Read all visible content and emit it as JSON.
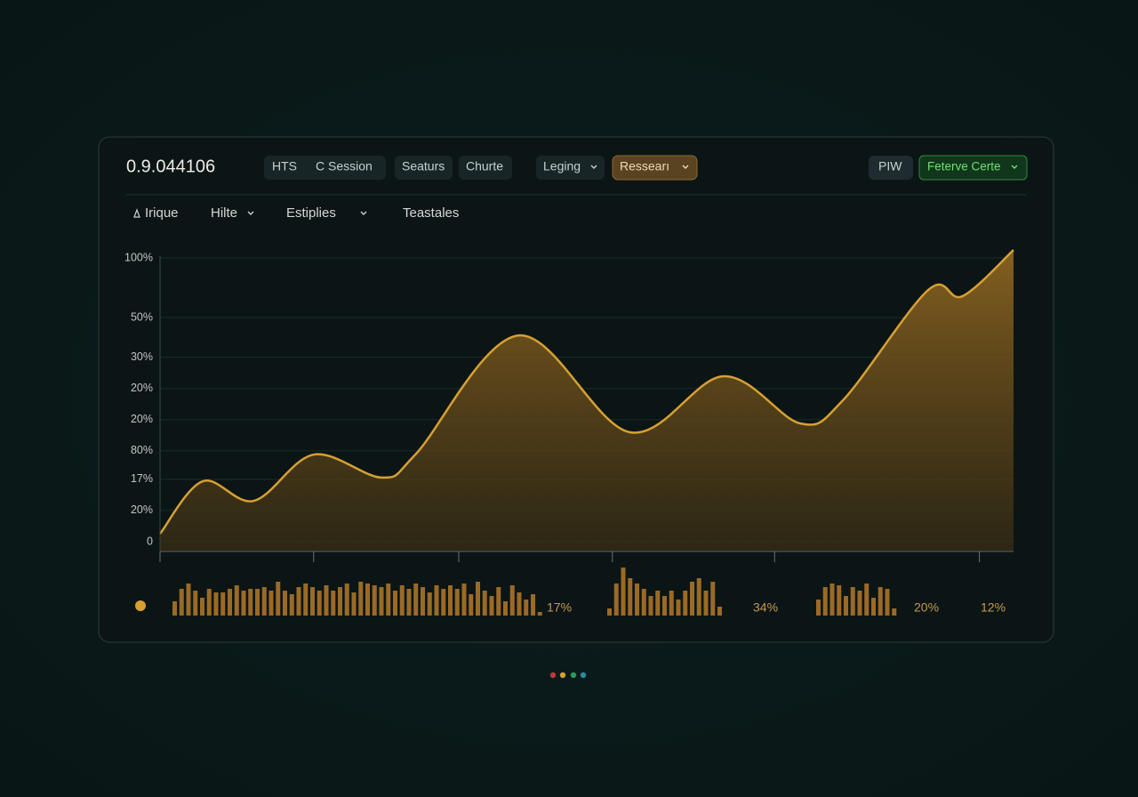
{
  "header": {
    "title": "0.9.044106",
    "buttons": [
      "HTS",
      "C Session",
      "Seaturs",
      "Churte",
      "Leging",
      "Ressearı",
      "PIW",
      "Feterve Certe"
    ]
  },
  "toolbar": {
    "items": [
      "Irique",
      "Hilte",
      "Estiplies",
      "Teastales"
    ]
  },
  "chart_data": [
    {
      "type": "area",
      "x": [
        0,
        5,
        11,
        18,
        26,
        30,
        42,
        55,
        66,
        75,
        80,
        90,
        94,
        100
      ],
      "values": [
        2.8,
        21.3,
        14.4,
        30.7,
        22.6,
        31,
        72.7,
        38.6,
        58.3,
        41.7,
        49.8,
        88.7,
        86.5,
        102.8
      ],
      "color": "#d6a032",
      "xlim": [
        0,
        100
      ],
      "xticks": [
        0,
        18,
        35,
        53,
        72,
        96
      ],
      "ylim": [
        0,
        104
      ],
      "yticks": [
        {
          "value": 100,
          "label": "100%"
        },
        {
          "value": 79,
          "label": "50%"
        },
        {
          "value": 65,
          "label": "30%"
        },
        {
          "value": 54,
          "label": "20%"
        },
        {
          "value": 43,
          "label": "20%"
        },
        {
          "value": 32,
          "label": "80%"
        },
        {
          "value": 22,
          "label": "17%"
        },
        {
          "value": 11,
          "label": "20%"
        },
        0
      ],
      "grid": true
    },
    {
      "type": "bar",
      "color": "#9a6a26",
      "groups": [
        {
          "values": [
            16,
            30,
            36,
            28,
            20,
            30,
            26,
            26,
            30,
            34,
            28,
            30,
            30,
            32,
            28,
            38,
            28,
            24,
            32,
            36,
            32,
            28,
            34,
            28,
            32,
            36,
            26,
            38,
            36,
            34,
            32,
            36,
            28,
            34,
            30,
            36,
            32,
            26,
            34,
            30,
            34,
            30,
            36,
            24,
            38,
            28,
            22,
            32,
            16,
            34,
            26,
            18,
            24,
            4
          ]
        },
        {
          "values": [
            8,
            36,
            54,
            42,
            36,
            30,
            22,
            28,
            22,
            28,
            18,
            28,
            38,
            42,
            28,
            38,
            10
          ]
        },
        {
          "values": [
            18,
            32,
            36,
            34,
            22,
            32,
            28,
            36,
            20,
            32,
            30,
            8
          ]
        }
      ],
      "labels": [
        "17%",
        "34%",
        "20%",
        "12%"
      ]
    }
  ]
}
